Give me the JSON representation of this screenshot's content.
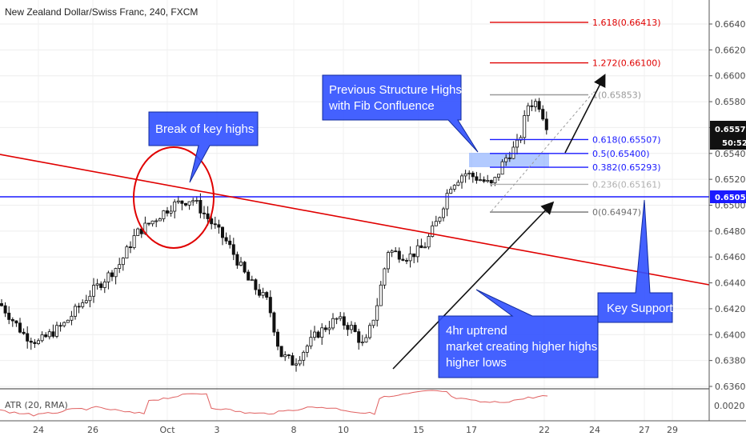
{
  "title": "New Zealand Dollar/Swiss Franc, 240, FXCM",
  "chart_data": {
    "type": "candlestick",
    "instrument": "New Zealand Dollar/Swiss Franc",
    "timeframe": "240",
    "source": "FXCM",
    "y_ticks": [
      "0.66400",
      "0.66200",
      "0.66000",
      "0.65800",
      "0.65600",
      "0.65400",
      "0.65200",
      "0.65000",
      "0.64800",
      "0.64600",
      "0.64400",
      "0.64200",
      "0.64000",
      "0.63800",
      "0.63600"
    ],
    "x_ticks": [
      "24",
      "26",
      "Oct",
      "3",
      "8",
      "10",
      "15",
      "17",
      "22",
      "24",
      "27",
      "29"
    ],
    "ylim": [
      0.6355,
      0.6648
    ],
    "price_tags": {
      "current": "0.65577",
      "countdown": "50:52",
      "support": "0.65053"
    },
    "fibonacci": [
      {
        "label": "1.618(0.66413)",
        "value": 0.66413,
        "color": "#e00000"
      },
      {
        "label": "1.272(0.66100)",
        "value": 0.661,
        "color": "#e00000"
      },
      {
        "label": "1(0.65853)",
        "value": 0.65853,
        "color": "#9a9a9a"
      },
      {
        "label": "0.618(0.65507)",
        "value": 0.65507,
        "color": "#1a1aff"
      },
      {
        "label": "0.5(0.65400)",
        "value": 0.654,
        "color": "#1a1aff"
      },
      {
        "label": "0.382(0.65293)",
        "value": 0.65293,
        "color": "#1a1aff"
      },
      {
        "label": "0.236(0.65161)",
        "value": 0.65161,
        "color": "#b0b0b0"
      },
      {
        "label": "0(0.64947)",
        "value": 0.64947,
        "color": "#707070"
      }
    ],
    "annotations": {
      "break_highs": "Break of key highs",
      "prev_structure_line1": "Previous Structure Highs",
      "prev_structure_line2": "with Fib Confluence",
      "key_support": "Key Support",
      "uptrend_line1": "4hr uptrend",
      "uptrend_line2": "market creating higher highs",
      "uptrend_line3": "higher lows"
    },
    "indicator": {
      "label": "ATR (20, RMA)",
      "ticks": [
        "0.0020"
      ]
    }
  }
}
